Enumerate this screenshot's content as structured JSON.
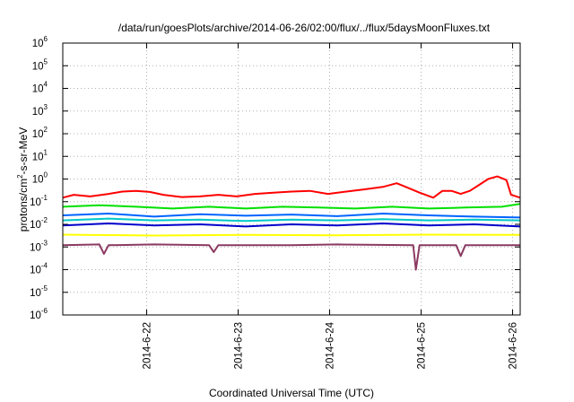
{
  "chart_data": {
    "type": "line",
    "title": "/data/run/goesPlots/archive/2014-06-26/02:00/flux/../flux/5daysMoonFluxes.txt",
    "xlabel": "Coordinated Universal Time (UTC)",
    "ylabel": {
      "base": "protons/cm",
      "sup": "2",
      "rest": "-s-sr-MeV"
    },
    "y_scale": "log",
    "ylim": [
      1e-06,
      1000000.0
    ],
    "y_tick_exponents": [
      -6,
      -5,
      -4,
      -3,
      -2,
      -1,
      0,
      1,
      2,
      3,
      4,
      5,
      6
    ],
    "y_tick_base": "10",
    "xlim": [
      "2014-06-21 02:00",
      "2014-06-26 02:00"
    ],
    "x_ticks": [
      {
        "label": "2014-6-22",
        "day": 0.917
      },
      {
        "label": "2014-6-23",
        "day": 1.917
      },
      {
        "label": "2014-6-24",
        "day": 2.917
      },
      {
        "label": "2014-6-25",
        "day": 3.917
      },
      {
        "label": "2014-6-26",
        "day": 4.917
      }
    ],
    "grid": true,
    "legend": "none",
    "series": [
      {
        "color": "#ff0000",
        "points": [
          [
            0,
            0.15
          ],
          [
            0.12,
            0.2
          ],
          [
            0.3,
            0.17
          ],
          [
            0.5,
            0.22
          ],
          [
            0.65,
            0.28
          ],
          [
            0.8,
            0.3
          ],
          [
            0.95,
            0.27
          ],
          [
            1.1,
            0.2
          ],
          [
            1.3,
            0.16
          ],
          [
            1.5,
            0.17
          ],
          [
            1.7,
            0.2
          ],
          [
            1.9,
            0.17
          ],
          [
            2.1,
            0.22
          ],
          [
            2.3,
            0.25
          ],
          [
            2.5,
            0.28
          ],
          [
            2.7,
            0.3
          ],
          [
            2.9,
            0.22
          ],
          [
            3.1,
            0.28
          ],
          [
            3.3,
            0.35
          ],
          [
            3.5,
            0.45
          ],
          [
            3.65,
            0.65
          ],
          [
            3.75,
            0.45
          ],
          [
            3.9,
            0.25
          ],
          [
            4.05,
            0.15
          ],
          [
            4.15,
            0.3
          ],
          [
            4.25,
            0.3
          ],
          [
            4.35,
            0.22
          ],
          [
            4.45,
            0.3
          ],
          [
            4.55,
            0.55
          ],
          [
            4.65,
            1.0
          ],
          [
            4.75,
            1.3
          ],
          [
            4.85,
            0.9
          ],
          [
            4.9,
            0.2
          ],
          [
            5.0,
            0.15
          ]
        ]
      },
      {
        "color": "#00e000",
        "points": [
          [
            0,
            0.06
          ],
          [
            0.4,
            0.07
          ],
          [
            0.8,
            0.06
          ],
          [
            1.2,
            0.05
          ],
          [
            1.6,
            0.06
          ],
          [
            2.0,
            0.05
          ],
          [
            2.4,
            0.06
          ],
          [
            2.8,
            0.055
          ],
          [
            3.2,
            0.05
          ],
          [
            3.6,
            0.06
          ],
          [
            4.0,
            0.05
          ],
          [
            4.4,
            0.055
          ],
          [
            4.8,
            0.06
          ],
          [
            5.0,
            0.08
          ]
        ]
      },
      {
        "color": "#00c8c8",
        "points": [
          [
            0,
            0.015
          ],
          [
            0.5,
            0.018
          ],
          [
            1.0,
            0.015
          ],
          [
            1.5,
            0.016
          ],
          [
            2.0,
            0.014
          ],
          [
            2.5,
            0.016
          ],
          [
            3.0,
            0.015
          ],
          [
            3.5,
            0.017
          ],
          [
            4.0,
            0.015
          ],
          [
            4.5,
            0.016
          ],
          [
            5.0,
            0.015
          ]
        ]
      },
      {
        "color": "#0064ff",
        "points": [
          [
            0,
            0.025
          ],
          [
            0.5,
            0.03
          ],
          [
            1.0,
            0.022
          ],
          [
            1.5,
            0.028
          ],
          [
            2.0,
            0.024
          ],
          [
            2.5,
            0.027
          ],
          [
            3.0,
            0.023
          ],
          [
            3.5,
            0.03
          ],
          [
            4.0,
            0.025
          ],
          [
            4.5,
            0.022
          ],
          [
            5.0,
            0.02
          ]
        ]
      },
      {
        "color": "#0000cc",
        "points": [
          [
            0,
            0.009
          ],
          [
            0.5,
            0.011
          ],
          [
            1.0,
            0.009
          ],
          [
            1.5,
            0.01
          ],
          [
            2.0,
            0.008
          ],
          [
            2.5,
            0.01
          ],
          [
            3.0,
            0.009
          ],
          [
            3.5,
            0.011
          ],
          [
            4.0,
            0.009
          ],
          [
            4.5,
            0.01
          ],
          [
            5.0,
            0.008
          ]
        ]
      },
      {
        "color": "#ffff00",
        "points": [
          [
            0,
            0.0035
          ],
          [
            1.0,
            0.0032
          ],
          [
            2.0,
            0.0034
          ],
          [
            3.0,
            0.0033
          ],
          [
            4.0,
            0.0035
          ],
          [
            5.0,
            0.0034
          ]
        ]
      },
      {
        "color": "#8b3a62",
        "points": [
          [
            0,
            0.0012
          ],
          [
            0.4,
            0.0013
          ],
          [
            0.45,
            0.0005
          ],
          [
            0.5,
            0.0012
          ],
          [
            1.0,
            0.0013
          ],
          [
            1.6,
            0.0012
          ],
          [
            1.65,
            0.0006
          ],
          [
            1.7,
            0.0012
          ],
          [
            2.5,
            0.0012
          ],
          [
            3.0,
            0.0013
          ],
          [
            3.83,
            0.0012
          ],
          [
            3.86,
            0.0001
          ],
          [
            3.9,
            0.0012
          ],
          [
            4.3,
            0.0012
          ],
          [
            4.35,
            0.0004
          ],
          [
            4.4,
            0.0012
          ],
          [
            5.0,
            0.0012
          ]
        ]
      }
    ]
  }
}
